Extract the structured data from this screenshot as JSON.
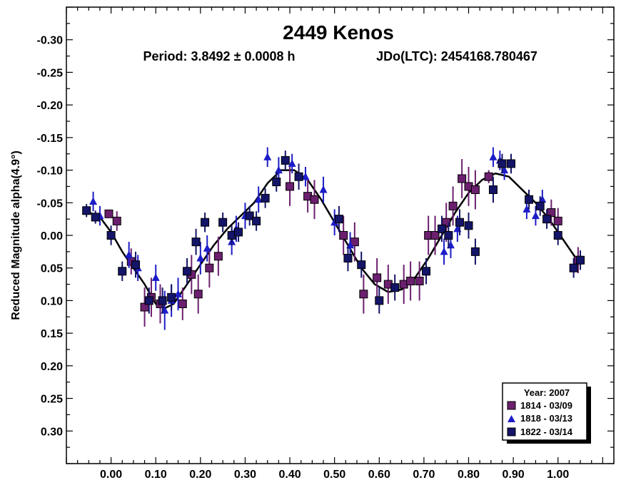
{
  "chart_data": {
    "type": "scatter",
    "title": "2449 Kenos",
    "subtitle_period": "Period: 3.8492 ± 0.0008 h",
    "subtitle_epoch": "JDo(LTC): 2454168.780467",
    "ylabel": "Reduced Magnitude alpha(4.9°)",
    "xlabel": "",
    "xlim": [
      -0.1,
      1.125
    ],
    "ylim": [
      -0.35,
      0.35
    ],
    "y_inverted": true,
    "grid": false,
    "legend_position": "bottom-right",
    "x_ticks": [
      0.0,
      0.1,
      0.2,
      0.3,
      0.4,
      0.5,
      0.6,
      0.7,
      0.8,
      0.9,
      1.0
    ],
    "x_tick_labels": [
      "0.00",
      "0.10",
      "0.20",
      "0.30",
      "0.40",
      "0.50",
      "0.60",
      "0.70",
      "0.80",
      "0.90",
      "1.00"
    ],
    "y_ticks": [
      -0.3,
      -0.25,
      -0.2,
      -0.15,
      -0.1,
      -0.05,
      0.0,
      0.05,
      0.1,
      0.15,
      0.2,
      0.25,
      0.3
    ],
    "y_tick_labels": [
      "-0.30",
      "-0.25",
      "-0.20",
      "-0.15",
      "-0.10",
      "-0.05",
      "0.00",
      "0.05",
      "0.10",
      "0.15",
      "0.20",
      "0.25",
      "0.30"
    ],
    "legend": {
      "title": "Year: 2007",
      "entries": [
        "1814 - 03/09",
        "1818 - 03/13",
        "1822 - 03/14"
      ]
    },
    "series": [
      {
        "name": "1814 - 03/09",
        "marker": "square",
        "color": "#6b1f6e",
        "points": [
          [
            -0.005,
            -0.033,
            0.005
          ],
          [
            0.013,
            -0.022,
            0.015
          ],
          [
            0.045,
            0.04,
            0.02
          ],
          [
            0.075,
            0.11,
            0.03
          ],
          [
            0.09,
            0.095,
            0.03
          ],
          [
            0.11,
            0.105,
            0.03
          ],
          [
            0.16,
            0.105,
            0.025
          ],
          [
            0.18,
            0.06,
            0.03
          ],
          [
            0.195,
            0.09,
            0.03
          ],
          [
            0.22,
            0.05,
            0.03
          ],
          [
            0.24,
            0.032,
            0.03
          ],
          [
            0.4,
            -0.075,
            0.03
          ],
          [
            0.44,
            -0.06,
            0.025
          ],
          [
            0.455,
            -0.055,
            0.03
          ],
          [
            0.52,
            0.0,
            0.03
          ],
          [
            0.545,
            0.01,
            0.03
          ],
          [
            0.565,
            0.09,
            0.03
          ],
          [
            0.595,
            0.065,
            0.03
          ],
          [
            0.62,
            0.075,
            0.03
          ],
          [
            0.655,
            0.075,
            0.03
          ],
          [
            0.67,
            0.07,
            0.03
          ],
          [
            0.69,
            0.07,
            0.03
          ],
          [
            0.71,
            0.0,
            0.03
          ],
          [
            0.725,
            0.0,
            0.03
          ],
          [
            0.75,
            -0.02,
            0.03
          ],
          [
            0.765,
            -0.045,
            0.03
          ],
          [
            0.785,
            -0.087,
            0.03
          ],
          [
            0.8,
            -0.075,
            0.03
          ],
          [
            0.815,
            -0.07,
            0.03
          ],
          [
            0.845,
            -0.09,
            0.01
          ],
          [
            0.985,
            -0.035,
            0.02
          ],
          [
            1.0,
            -0.022,
            0.02
          ],
          [
            1.045,
            0.038,
            0.02
          ]
        ]
      },
      {
        "name": "1818 - 03/13",
        "marker": "triangle",
        "color": "#1c1cc8",
        "points": [
          [
            -0.04,
            -0.052,
            0.015
          ],
          [
            -0.025,
            -0.03,
            0.015
          ],
          [
            0.04,
            0.03,
            0.02
          ],
          [
            0.06,
            0.05,
            0.02
          ],
          [
            0.1,
            0.065,
            0.02
          ],
          [
            0.12,
            0.115,
            0.03
          ],
          [
            0.135,
            0.1,
            0.025
          ],
          [
            0.15,
            0.09,
            0.025
          ],
          [
            0.2,
            0.035,
            0.025
          ],
          [
            0.215,
            0.02,
            0.02
          ],
          [
            0.27,
            0.01,
            0.02
          ],
          [
            0.28,
            -0.01,
            0.02
          ],
          [
            0.3,
            -0.03,
            0.02
          ],
          [
            0.33,
            -0.055,
            0.02
          ],
          [
            0.35,
            -0.12,
            0.015
          ],
          [
            0.375,
            -0.1,
            0.02
          ],
          [
            0.405,
            -0.11,
            0.015
          ],
          [
            0.435,
            -0.09,
            0.015
          ],
          [
            0.475,
            -0.07,
            0.02
          ],
          [
            0.5,
            -0.02,
            0.02
          ],
          [
            0.535,
            0.015,
            0.02
          ],
          [
            0.745,
            0.025,
            0.02
          ],
          [
            0.76,
            0.015,
            0.02
          ],
          [
            0.775,
            -0.01,
            0.02
          ],
          [
            0.855,
            -0.12,
            0.015
          ],
          [
            0.87,
            -0.115,
            0.015
          ],
          [
            0.88,
            -0.1,
            0.015
          ],
          [
            0.93,
            -0.04,
            0.015
          ],
          [
            0.95,
            -0.03,
            0.015
          ],
          [
            0.965,
            -0.055,
            0.015
          ]
        ]
      },
      {
        "name": "1822 - 03/14",
        "marker": "square",
        "color": "#141468",
        "points": [
          [
            -0.055,
            -0.038,
            0.01
          ],
          [
            -0.035,
            -0.028,
            0.01
          ],
          [
            0.0,
            0.0,
            0.015
          ],
          [
            0.025,
            0.055,
            0.015
          ],
          [
            0.055,
            0.045,
            0.02
          ],
          [
            0.085,
            0.1,
            0.02
          ],
          [
            0.115,
            0.1,
            0.02
          ],
          [
            0.135,
            0.095,
            0.02
          ],
          [
            0.17,
            0.055,
            0.02
          ],
          [
            0.19,
            0.01,
            0.02
          ],
          [
            0.21,
            -0.02,
            0.015
          ],
          [
            0.25,
            -0.02,
            0.015
          ],
          [
            0.27,
            0.0,
            0.015
          ],
          [
            0.285,
            -0.005,
            0.015
          ],
          [
            0.31,
            -0.03,
            0.015
          ],
          [
            0.325,
            -0.022,
            0.015
          ],
          [
            0.345,
            -0.057,
            0.015
          ],
          [
            0.37,
            -0.082,
            0.015
          ],
          [
            0.39,
            -0.115,
            0.015
          ],
          [
            0.42,
            -0.09,
            0.02
          ],
          [
            0.51,
            -0.025,
            0.02
          ],
          [
            0.53,
            0.035,
            0.02
          ],
          [
            0.56,
            0.045,
            0.02
          ],
          [
            0.6,
            0.1,
            0.02
          ],
          [
            0.635,
            0.08,
            0.02
          ],
          [
            0.705,
            0.055,
            0.02
          ],
          [
            0.74,
            -0.01,
            0.02
          ],
          [
            0.755,
            0.0,
            0.02
          ],
          [
            0.78,
            -0.02,
            0.02
          ],
          [
            0.8,
            -0.015,
            0.02
          ],
          [
            0.815,
            0.025,
            0.02
          ],
          [
            0.855,
            -0.07,
            0.02
          ],
          [
            0.875,
            -0.11,
            0.015
          ],
          [
            0.895,
            -0.11,
            0.015
          ],
          [
            0.935,
            -0.055,
            0.015
          ],
          [
            0.96,
            -0.045,
            0.015
          ],
          [
            0.975,
            -0.025,
            0.015
          ],
          [
            1.0,
            0.0,
            0.015
          ],
          [
            1.035,
            0.05,
            0.015
          ],
          [
            1.05,
            0.038,
            0.015
          ]
        ]
      }
    ],
    "fit_curve": [
      [
        -0.055,
        -0.037
      ],
      [
        -0.025,
        -0.028
      ],
      [
        0.0,
        -0.005
      ],
      [
        0.025,
        0.025
      ],
      [
        0.05,
        0.05
      ],
      [
        0.075,
        0.075
      ],
      [
        0.1,
        0.105
      ],
      [
        0.12,
        0.112
      ],
      [
        0.14,
        0.105
      ],
      [
        0.17,
        0.075
      ],
      [
        0.2,
        0.045
      ],
      [
        0.23,
        0.015
      ],
      [
        0.26,
        -0.01
      ],
      [
        0.29,
        -0.03
      ],
      [
        0.32,
        -0.05
      ],
      [
        0.35,
        -0.08
      ],
      [
        0.38,
        -0.1
      ],
      [
        0.41,
        -0.1
      ],
      [
        0.44,
        -0.085
      ],
      [
        0.47,
        -0.055
      ],
      [
        0.5,
        -0.02
      ],
      [
        0.53,
        0.015
      ],
      [
        0.56,
        0.05
      ],
      [
        0.59,
        0.075
      ],
      [
        0.62,
        0.087
      ],
      [
        0.65,
        0.083
      ],
      [
        0.68,
        0.065
      ],
      [
        0.71,
        0.035
      ],
      [
        0.74,
        0.0
      ],
      [
        0.77,
        -0.035
      ],
      [
        0.8,
        -0.065
      ],
      [
        0.83,
        -0.085
      ],
      [
        0.86,
        -0.095
      ],
      [
        0.89,
        -0.09
      ],
      [
        0.92,
        -0.07
      ],
      [
        0.95,
        -0.05
      ],
      [
        0.98,
        -0.025
      ],
      [
        1.01,
        0.005
      ],
      [
        1.04,
        0.035
      ],
      [
        1.055,
        0.04
      ]
    ]
  }
}
